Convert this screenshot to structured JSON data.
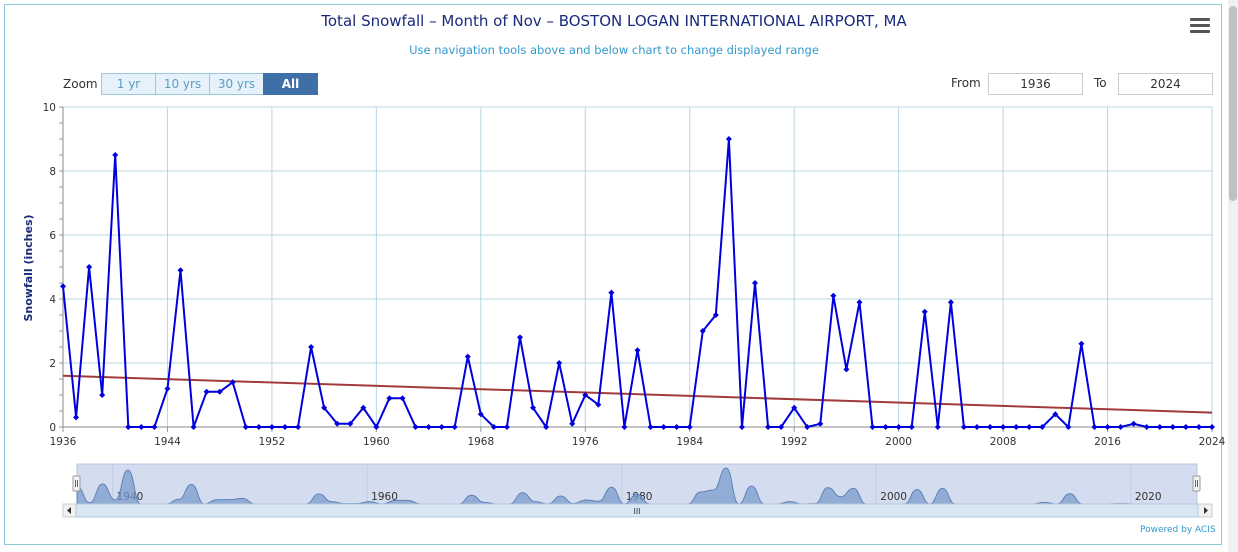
{
  "header": {
    "title": "Total Snowfall – Month of Nov – BOSTON LOGAN INTERNATIONAL AIRPORT, MA",
    "subtitle": "Use navigation tools above and below chart to change displayed range"
  },
  "zoom": {
    "label": "Zoom",
    "buttons": [
      "1 yr",
      "10 yrs",
      "30 yrs",
      "All"
    ],
    "active": "All"
  },
  "range": {
    "from_label": "From",
    "from_value": "1936",
    "to_label": "To",
    "to_value": "2024"
  },
  "navigator": {
    "labels": [
      "1940",
      "1960",
      "1980",
      "2000",
      "2020"
    ],
    "grip": "III"
  },
  "credits": "Powered by ACIS",
  "colors": {
    "series": "#0000dd",
    "trend": "#a33a3a",
    "grid": "#b8d4e4",
    "navigator_fill": "#7b9ccc"
  },
  "chart_data": {
    "type": "line",
    "title": "Total Snowfall – Month of Nov – BOSTON LOGAN INTERNATIONAL AIRPORT, MA",
    "ylabel": "Snowfall (inches)",
    "xlabel": "",
    "xlim": [
      1936,
      2024
    ],
    "ylim": [
      0,
      10
    ],
    "x_ticks": [
      "1936",
      "1944",
      "1952",
      "1960",
      "1968",
      "1976",
      "1984",
      "1992",
      "2000",
      "2008",
      "2016",
      "2024"
    ],
    "y_ticks": [
      "0",
      "2",
      "4",
      "6",
      "8",
      "10"
    ],
    "grid": true,
    "x": [
      1936,
      1937,
      1938,
      1939,
      1940,
      1941,
      1942,
      1943,
      1944,
      1945,
      1946,
      1947,
      1948,
      1949,
      1950,
      1951,
      1952,
      1953,
      1954,
      1955,
      1956,
      1957,
      1958,
      1959,
      1960,
      1961,
      1962,
      1963,
      1964,
      1965,
      1966,
      1967,
      1968,
      1969,
      1970,
      1971,
      1972,
      1973,
      1974,
      1975,
      1976,
      1977,
      1978,
      1979,
      1980,
      1981,
      1982,
      1983,
      1984,
      1985,
      1986,
      1987,
      1988,
      1989,
      1990,
      1991,
      1992,
      1993,
      1994,
      1995,
      1996,
      1997,
      1998,
      1999,
      2000,
      2001,
      2002,
      2003,
      2004,
      2005,
      2006,
      2007,
      2008,
      2009,
      2010,
      2011,
      2012,
      2013,
      2014,
      2015,
      2016,
      2017,
      2018,
      2019,
      2020,
      2021,
      2022,
      2023,
      2024
    ],
    "series": [
      {
        "values": [
          4.4,
          0.3,
          5.0,
          1.0,
          8.5,
          0,
          0,
          0,
          1.2,
          4.9,
          0,
          1.1,
          1.1,
          1.4,
          0,
          0,
          0,
          0,
          0,
          2.5,
          0.6,
          0.1,
          0.1,
          0.6,
          0,
          0.9,
          0.9,
          0,
          0,
          0,
          0,
          2.2,
          0.4,
          0,
          0,
          2.8,
          0.6,
          0,
          2.0,
          0.1,
          1.0,
          0.7,
          4.2,
          0,
          2.4,
          0,
          0,
          0,
          0,
          3.0,
          3.5,
          9.0,
          0,
          4.5,
          0,
          0,
          0.6,
          0,
          0.1,
          4.1,
          1.8,
          3.9,
          0,
          0,
          0,
          0,
          3.6,
          0,
          3.9,
          0,
          0,
          0,
          0,
          0,
          0,
          0,
          0.4,
          0,
          2.6,
          0,
          0,
          0,
          0.1,
          0,
          0,
          0,
          0,
          0,
          0
        ]
      },
      {
        "type": "trend",
        "values_at_ends": [
          1.6,
          0.45
        ]
      }
    ]
  }
}
